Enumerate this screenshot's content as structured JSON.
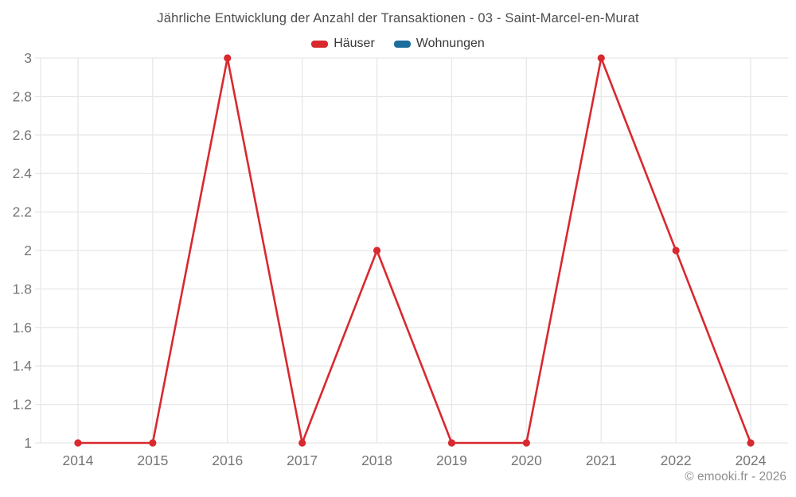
{
  "title": "Jährliche Entwicklung der Anzahl der Transaktionen - 03 - Saint-Marcel-en-Murat",
  "legend": [
    {
      "label": "Häuser",
      "color": "#d8292f"
    },
    {
      "label": "Wohnungen",
      "color": "#1b6d9d"
    }
  ],
  "footer": {
    "copyright": "© emooki.fr - 2026"
  },
  "colors": {
    "grid": "#e7e7e7",
    "axis_text": "#757575",
    "title_text": "#4c4c4c"
  },
  "chart_data": {
    "type": "line",
    "title": "Jährliche Entwicklung der Anzahl der Transaktionen - 03 - Saint-Marcel-en-Murat",
    "categories": [
      "2014",
      "2015",
      "2016",
      "2017",
      "2018",
      "2019",
      "2020",
      "2021",
      "2022",
      "2024"
    ],
    "series": [
      {
        "name": "Häuser",
        "color": "#d8292f",
        "values": [
          1,
          1,
          3,
          1,
          2,
          1,
          1,
          3,
          2,
          1
        ]
      },
      {
        "name": "Wohnungen",
        "color": "#1b6d9d",
        "values": []
      }
    ],
    "xlabel": "",
    "ylabel": "",
    "ylim": [
      1,
      3
    ],
    "ytick_step": 0.2,
    "grid": true,
    "legend_position": "top"
  }
}
